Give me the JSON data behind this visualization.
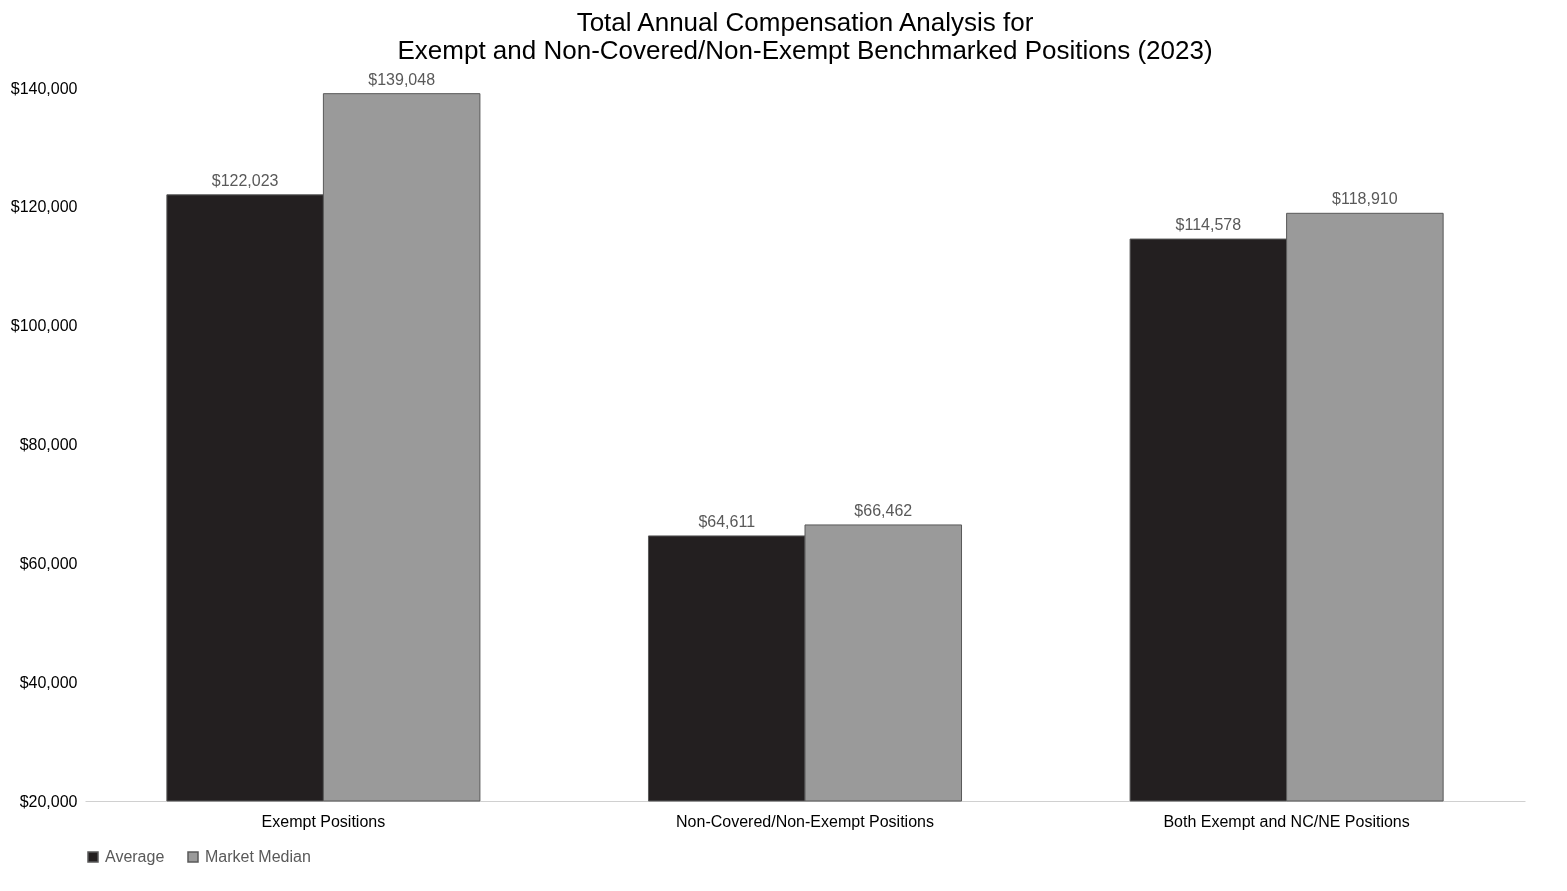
{
  "chart_data": {
    "type": "bar",
    "title": "Total Annual Compensation Analysis for\nExempt and Non-Covered/Non-Exempt Benchmarked Positions (2023)",
    "categories": [
      "Exempt Positions",
      "Non-Covered/Non-Exempt Positions",
      "Both Exempt and NC/NE Positions"
    ],
    "series": [
      {
        "name": "Average",
        "color": "#231f20",
        "values": [
          122023,
          64611,
          114578
        ],
        "value_labels": [
          "$122,023",
          "$64,611",
          "$114,578"
        ]
      },
      {
        "name": "Market Median",
        "color": "#9a9a9a",
        "values": [
          139048,
          66462,
          118910
        ],
        "value_labels": [
          "$139,048",
          "$66,462",
          "$118,910"
        ]
      }
    ],
    "ylim": [
      20000,
      140000
    ],
    "yticks": [
      {
        "value": 20000,
        "label": "$20,000"
      },
      {
        "value": 40000,
        "label": "$40,000"
      },
      {
        "value": 60000,
        "label": "$60,000"
      },
      {
        "value": 80000,
        "label": "$80,000"
      },
      {
        "value": 100000,
        "label": "$100,000"
      },
      {
        "value": 120000,
        "label": "$120,000"
      },
      {
        "value": 140000,
        "label": "$140,000"
      }
    ],
    "grid": false,
    "legend": "bottom"
  }
}
